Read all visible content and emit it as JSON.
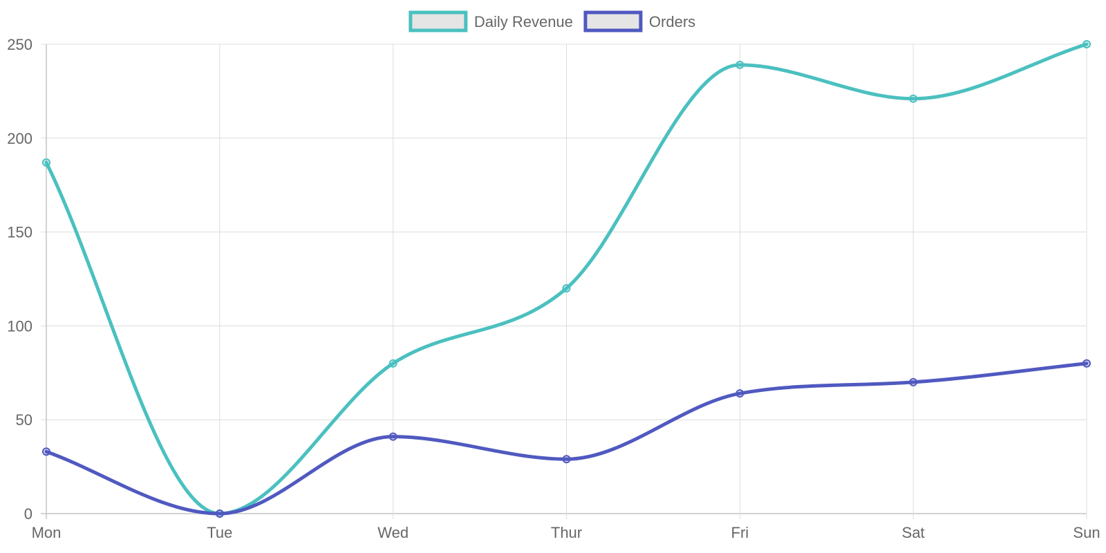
{
  "chart_data": {
    "type": "line",
    "categories": [
      "Mon",
      "Tue",
      "Wed",
      "Thur",
      "Fri",
      "Sat",
      "Sun"
    ],
    "series": [
      {
        "name": "Daily Revenue",
        "values": [
          187,
          0,
          80,
          120,
          239,
          221,
          250
        ],
        "color": "#4bc0c0"
      },
      {
        "name": "Orders",
        "values": [
          33,
          0,
          41,
          29,
          64,
          70,
          80
        ],
        "color": "#5059c0"
      }
    ],
    "ylim": [
      0,
      250
    ],
    "yticks": [
      0,
      50,
      100,
      150,
      200,
      250
    ],
    "grid": true,
    "legend_position": "top-center",
    "legend_fill": "#e5e5e5"
  }
}
